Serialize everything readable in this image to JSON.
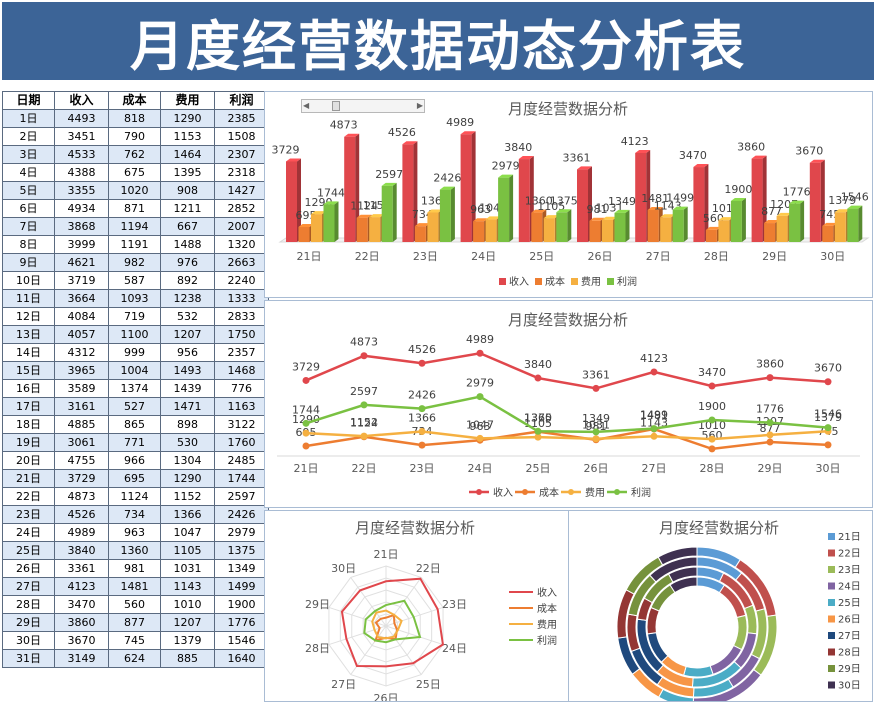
{
  "page_title": "月度经营数据动态分析表",
  "table": {
    "headers": [
      "日期",
      "收入",
      "成本",
      "费用",
      "利润"
    ],
    "rows": [
      [
        "1日",
        "4493",
        "818",
        "1290",
        "2385"
      ],
      [
        "2日",
        "3451",
        "790",
        "1153",
        "1508"
      ],
      [
        "3日",
        "4533",
        "762",
        "1464",
        "2307"
      ],
      [
        "4日",
        "4388",
        "675",
        "1395",
        "2318"
      ],
      [
        "5日",
        "3355",
        "1020",
        "908",
        "1427"
      ],
      [
        "6日",
        "4934",
        "871",
        "1211",
        "2852"
      ],
      [
        "7日",
        "3868",
        "1194",
        "667",
        "2007"
      ],
      [
        "8日",
        "3999",
        "1191",
        "1488",
        "1320"
      ],
      [
        "9日",
        "4621",
        "982",
        "976",
        "2663"
      ],
      [
        "10日",
        "3719",
        "587",
        "892",
        "2240"
      ],
      [
        "11日",
        "3664",
        "1093",
        "1238",
        "1333"
      ],
      [
        "12日",
        "4084",
        "719",
        "532",
        "2833"
      ],
      [
        "13日",
        "4057",
        "1100",
        "1207",
        "1750"
      ],
      [
        "14日",
        "4312",
        "999",
        "956",
        "2357"
      ],
      [
        "15日",
        "3965",
        "1004",
        "1493",
        "1468"
      ],
      [
        "16日",
        "3589",
        "1374",
        "1439",
        "776"
      ],
      [
        "17日",
        "3161",
        "527",
        "1471",
        "1163"
      ],
      [
        "18日",
        "4885",
        "865",
        "898",
        "3122"
      ],
      [
        "19日",
        "3061",
        "771",
        "530",
        "1760"
      ],
      [
        "20日",
        "4755",
        "966",
        "1304",
        "2485"
      ],
      [
        "21日",
        "3729",
        "695",
        "1290",
        "1744"
      ],
      [
        "22日",
        "4873",
        "1124",
        "1152",
        "2597"
      ],
      [
        "23日",
        "4526",
        "734",
        "1366",
        "2426"
      ],
      [
        "24日",
        "4989",
        "963",
        "1047",
        "2979"
      ],
      [
        "25日",
        "3840",
        "1360",
        "1105",
        "1375"
      ],
      [
        "26日",
        "3361",
        "981",
        "1031",
        "1349"
      ],
      [
        "27日",
        "4123",
        "1481",
        "1143",
        "1499"
      ],
      [
        "28日",
        "3470",
        "560",
        "1010",
        "1900"
      ],
      [
        "29日",
        "3860",
        "877",
        "1207",
        "1776"
      ],
      [
        "30日",
        "3670",
        "745",
        "1379",
        "1546"
      ],
      [
        "31日",
        "3149",
        "624",
        "885",
        "1640"
      ]
    ]
  },
  "series_colors": [
    "#e0474c",
    "#ed7d31",
    "#f5b041",
    "#7ac142"
  ],
  "donut_colors": [
    "#5b9bd5",
    "#c0504d",
    "#9bbb59",
    "#8064a2",
    "#4bacc6",
    "#f79646",
    "#1f497d",
    "#943634",
    "#76923c",
    "#3f3151"
  ],
  "chart_data": [
    {
      "type": "bar",
      "title": "月度经营数据分析",
      "categories": [
        "21日",
        "22日",
        "23日",
        "24日",
        "25日",
        "26日",
        "27日",
        "28日",
        "29日",
        "30日"
      ],
      "series": [
        {
          "name": "收入",
          "values": [
            3729,
            4873,
            4526,
            4989,
            3840,
            3361,
            4123,
            3470,
            3860,
            3670
          ]
        },
        {
          "name": "成本",
          "values": [
            695,
            1124,
            734,
            963,
            1360,
            981,
            1481,
            560,
            877,
            745
          ]
        },
        {
          "name": "费用",
          "values": [
            1290,
            1152,
            1366,
            1047,
            1105,
            1031,
            1143,
            1010,
            1207,
            1379
          ]
        },
        {
          "name": "利润",
          "values": [
            1744,
            2597,
            2426,
            2979,
            1375,
            1349,
            1499,
            1900,
            1776,
            1546
          ]
        }
      ],
      "legend": "bottom",
      "grid": false
    },
    {
      "type": "line",
      "title": "月度经营数据分析",
      "categories": [
        "21日",
        "22日",
        "23日",
        "24日",
        "25日",
        "26日",
        "27日",
        "28日",
        "29日",
        "30日"
      ],
      "series": [
        {
          "name": "收入",
          "values": [
            3729,
            4873,
            4526,
            4989,
            3840,
            3361,
            4123,
            3470,
            3860,
            3670
          ]
        },
        {
          "name": "成本",
          "values": [
            695,
            1124,
            734,
            963,
            1360,
            981,
            1481,
            560,
            877,
            745
          ]
        },
        {
          "name": "费用",
          "values": [
            1290,
            1152,
            1366,
            1047,
            1105,
            1031,
            1143,
            1010,
            1207,
            1379
          ]
        },
        {
          "name": "利润",
          "values": [
            1744,
            2597,
            2426,
            2979,
            1375,
            1349,
            1499,
            1900,
            1776,
            1546
          ]
        }
      ],
      "legend": "bottom",
      "grid": false
    },
    {
      "type": "radar",
      "title": "月度经营数据分析",
      "categories": [
        "21日",
        "22日",
        "23日",
        "24日",
        "25日",
        "26日",
        "27日",
        "28日",
        "29日",
        "30日"
      ],
      "series": [
        {
          "name": "收入",
          "values": [
            3729,
            4873,
            4526,
            4989,
            3840,
            3361,
            4123,
            3470,
            3860,
            3670
          ]
        },
        {
          "name": "成本",
          "values": [
            695,
            1124,
            734,
            963,
            1360,
            981,
            1481,
            560,
            877,
            745
          ]
        },
        {
          "name": "费用",
          "values": [
            1290,
            1152,
            1366,
            1047,
            1105,
            1031,
            1143,
            1010,
            1207,
            1379
          ]
        },
        {
          "name": "利润",
          "values": [
            1744,
            2597,
            2426,
            2979,
            1375,
            1349,
            1499,
            1900,
            1776,
            1546
          ]
        }
      ],
      "legend": "right"
    },
    {
      "type": "donut",
      "title": "月度经营数据分析",
      "categories": [
        "21日",
        "22日",
        "23日",
        "24日",
        "25日",
        "26日",
        "27日",
        "28日",
        "29日",
        "30日"
      ],
      "rings": [
        "收入",
        "成本",
        "费用",
        "利润"
      ],
      "legend": "right"
    }
  ]
}
